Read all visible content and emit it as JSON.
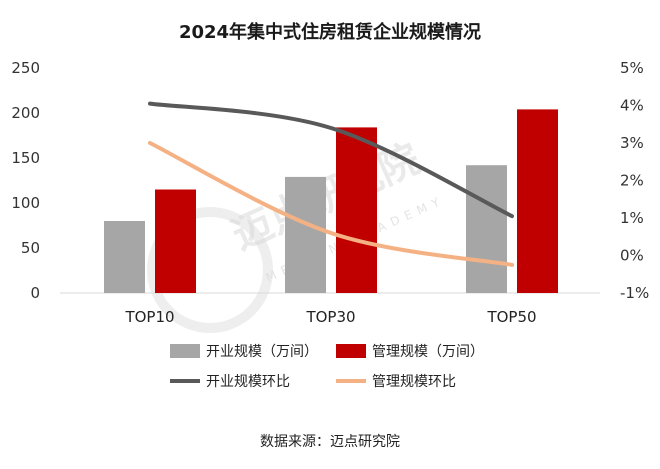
{
  "chart_data": {
    "type": "bar",
    "title": "2024年集中式住房租赁企业规模情况",
    "categories": [
      "TOP10",
      "TOP30",
      "TOP50"
    ],
    "series": [
      {
        "name": "开业规模（万间）",
        "kind": "bar",
        "axis": "left",
        "color": "#a6a6a6",
        "values": [
          80,
          129,
          142
        ]
      },
      {
        "name": "管理规模（万间）",
        "kind": "bar",
        "axis": "left",
        "color": "#c00000",
        "values": [
          115,
          184,
          204
        ]
      },
      {
        "name": "开业规模环比",
        "kind": "line",
        "axis": "right",
        "color": "#595959",
        "values": [
          4.05,
          3.4,
          1.05
        ]
      },
      {
        "name": "管理规模环比",
        "kind": "line",
        "axis": "right",
        "color": "#f4b183",
        "values": [
          3.0,
          0.6,
          -0.25
        ]
      }
    ],
    "y_left": {
      "min": 0,
      "max": 250,
      "ticks": [
        0,
        50,
        100,
        150,
        200,
        250
      ]
    },
    "y_right": {
      "min": -1,
      "max": 5,
      "ticks": [
        "-1%",
        "0%",
        "1%",
        "2%",
        "3%",
        "4%",
        "5%"
      ]
    },
    "grid": false,
    "legend_position": "bottom"
  },
  "source": "数据来源：迈点研究院",
  "watermark": {
    "text": "迈点研究院",
    "sub": "MEADIN ACADEMY"
  }
}
